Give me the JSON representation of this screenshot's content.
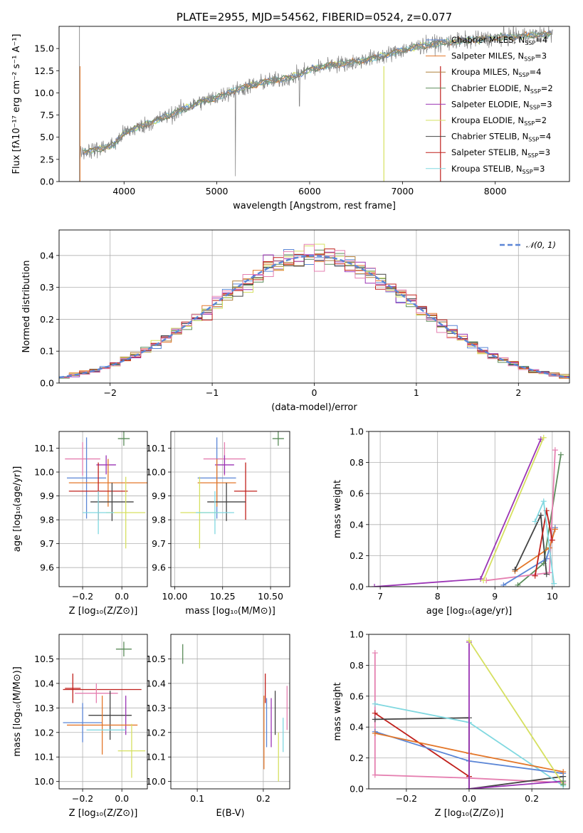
{
  "chart_data": [
    {
      "type": "line",
      "title": "PLATE=2955, MJD=54562, FIBERID=0524, z=0.077",
      "xlabel": "wavelength [Angstrom, rest frame]",
      "ylabel": "Flux [fλ10⁻¹⁷ erg cm⁻² s⁻¹ A⁻¹]",
      "xlim": [
        3300,
        8800
      ],
      "ylim": [
        0,
        17.5
      ],
      "xticks": [
        "4000",
        "5000",
        "6000",
        "7000",
        "8000"
      ],
      "yticks": [
        "0.0",
        "2.5",
        "5.0",
        "7.5",
        "10.0",
        "12.5",
        "15.0"
      ],
      "grid": false,
      "legend_position": "right",
      "legend": [
        {
          "label": "Chabrier MILES, N",
          "sub": "SSP",
          "tail": "=4",
          "color": "#5b86d6"
        },
        {
          "label": "Salpeter MILES, N",
          "sub": "SSP",
          "tail": "=3",
          "color": "#e3772a"
        },
        {
          "label": "Kroupa MILES, N",
          "sub": "SSP",
          "tail": "=4",
          "color": "#b0813c"
        },
        {
          "label": "Chabrier ELODIE, N",
          "sub": "SSP",
          "tail": "=2",
          "color": "#5b8c5a"
        },
        {
          "label": "Salpeter ELODIE, N",
          "sub": "SSP",
          "tail": "=3",
          "color": "#9b35b5"
        },
        {
          "label": "Kroupa ELODIE, N",
          "sub": "SSP",
          "tail": "=2",
          "color": "#d6e060"
        },
        {
          "label": "Chabrier STELIB, N",
          "sub": "SSP",
          "tail": "=4",
          "color": "#444444"
        },
        {
          "label": "Salpeter STELIB, N",
          "sub": "SSP",
          "tail": "=3",
          "color": "#c0201c"
        },
        {
          "label": "Kroupa STELIB, N",
          "sub": "SSP",
          "tail": "=3",
          "color": "#80d8e0"
        }
      ],
      "data_color": "#808080",
      "spectrum_anchors": {
        "x": [
          3500,
          3700,
          3900,
          4000,
          4200,
          4500,
          4800,
          5000,
          5200,
          5500,
          5800,
          6000,
          6200,
          6500,
          6800,
          7000,
          7200,
          7400,
          7600,
          8000,
          8400,
          8600
        ],
        "y": [
          3.3,
          3.6,
          4.2,
          5.5,
          6.3,
          7.5,
          8.9,
          9.5,
          10.3,
          11.2,
          11.7,
          12.6,
          13.1,
          13.5,
          14.2,
          14.8,
          15.3,
          15.6,
          15.8,
          16.2,
          16.5,
          16.6
        ]
      }
    },
    {
      "type": "histogram",
      "xlabel": "(data-model)/error",
      "ylabel": "Normed distribution",
      "xlim": [
        -2.5,
        2.5
      ],
      "ylim": [
        0,
        0.48
      ],
      "xticks": [
        "−2",
        "−1",
        "0",
        "1",
        "2"
      ],
      "yticks": [
        "0.0",
        "0.1",
        "0.2",
        "0.3",
        "0.4"
      ],
      "grid": true,
      "legend_position": "top-right",
      "reference_curve": {
        "name": "𝒩(0, 1)",
        "style": "dashed",
        "color": "#5b86d6"
      },
      "series": [
        {
          "color": "#5b86d6"
        },
        {
          "color": "#e3772a"
        },
        {
          "color": "#b0813c"
        },
        {
          "color": "#5b8c5a"
        },
        {
          "color": "#9b35b5"
        },
        {
          "color": "#d6e060"
        },
        {
          "color": "#444444"
        },
        {
          "color": "#c0201c"
        },
        {
          "color": "#e57fb0"
        }
      ]
    },
    {
      "type": "errorbar",
      "panel": "age-vs-Z",
      "xlabel": "Z [log₁₀(Z/Z⊙)]",
      "ylabel": "age  [log₁₀(age/yr)]",
      "xlim": [
        -0.32,
        0.13
      ],
      "ylim": [
        9.52,
        10.17
      ],
      "xticks": [
        "−0.2",
        "0.0"
      ],
      "yticks": [
        "9.6",
        "9.7",
        "9.8",
        "9.9",
        "10.0",
        "10.1"
      ],
      "grid": true,
      "points": [
        {
          "x": 0.01,
          "y": 10.14,
          "xerr": 0.03,
          "yerr": 0.03,
          "color": "#5b8c5a"
        },
        {
          "x": -0.2,
          "y": 10.055,
          "xerr": 0.09,
          "yerr": 0.07,
          "color": "#e57fb0"
        },
        {
          "x": -0.08,
          "y": 10.03,
          "xerr": 0.05,
          "yerr": 0.04,
          "color": "#9b35b5"
        },
        {
          "x": -0.18,
          "y": 9.975,
          "xerr": 0.1,
          "yerr": 0.17,
          "color": "#5b86d6"
        },
        {
          "x": -0.07,
          "y": 9.955,
          "xerr": 0.2,
          "yerr": 0.1,
          "color": "#e3772a"
        },
        {
          "x": -0.12,
          "y": 9.92,
          "xerr": 0.15,
          "yerr": 0.12,
          "color": "#c0201c"
        },
        {
          "x": -0.05,
          "y": 9.875,
          "xerr": 0.11,
          "yerr": 0.08,
          "color": "#444444"
        },
        {
          "x": 0.02,
          "y": 9.83,
          "xerr": 0.1,
          "yerr": 0.15,
          "color": "#d6e060"
        },
        {
          "x": -0.12,
          "y": 9.83,
          "xerr": 0.08,
          "yerr": 0.09,
          "color": "#80d8e0"
        }
      ]
    },
    {
      "type": "errorbar",
      "panel": "age-vs-mass",
      "xlabel": "mass [log₁₀(M/M⊙)]",
      "ylabel": "",
      "xlim": [
        9.98,
        10.6
      ],
      "ylim": [
        9.52,
        10.17
      ],
      "xticks": [
        "10.00",
        "10.25",
        "10.50"
      ],
      "yticks": [
        "9.6",
        "9.7",
        "9.8",
        "9.9",
        "10.0",
        "10.1"
      ],
      "grid": true,
      "points": [
        {
          "x": 10.54,
          "y": 10.14,
          "xerr": 0.03,
          "yerr": 0.03,
          "color": "#5b8c5a"
        },
        {
          "x": 10.26,
          "y": 10.055,
          "xerr": 0.11,
          "yerr": 0.07,
          "color": "#e57fb0"
        },
        {
          "x": 10.26,
          "y": 10.03,
          "xerr": 0.05,
          "yerr": 0.04,
          "color": "#9b35b5"
        },
        {
          "x": 10.22,
          "y": 9.975,
          "xerr": 0.1,
          "yerr": 0.17,
          "color": "#5b86d6"
        },
        {
          "x": 10.22,
          "y": 9.955,
          "xerr": 0.1,
          "yerr": 0.1,
          "color": "#e3772a"
        },
        {
          "x": 10.37,
          "y": 9.92,
          "xerr": 0.06,
          "yerr": 0.12,
          "color": "#c0201c"
        },
        {
          "x": 10.27,
          "y": 9.875,
          "xerr": 0.1,
          "yerr": 0.08,
          "color": "#444444"
        },
        {
          "x": 10.13,
          "y": 9.83,
          "xerr": 0.1,
          "yerr": 0.15,
          "color": "#d6e060"
        },
        {
          "x": 10.21,
          "y": 9.83,
          "xerr": 0.1,
          "yerr": 0.09,
          "color": "#80d8e0"
        }
      ]
    },
    {
      "type": "line",
      "panel": "weight-vs-age",
      "xlabel": "age  [log₁₀(age/yr)]",
      "ylabel": "mass weight",
      "xlim": [
        6.8,
        10.3
      ],
      "ylim": [
        0,
        1
      ],
      "xticks": [
        "7",
        "8",
        "9",
        "10"
      ],
      "yticks": [
        "0.0",
        "0.2",
        "0.4",
        "0.6",
        "0.8",
        "1.0"
      ],
      "grid": true,
      "series": [
        {
          "color": "#5b8c5a",
          "x": [
            9.4,
            9.85,
            10.15
          ],
          "y": [
            0.01,
            0.15,
            0.85
          ]
        },
        {
          "color": "#e57fb0",
          "x": [
            8.85,
            9.95,
            10.05
          ],
          "y": [
            0.04,
            0.09,
            0.88
          ]
        },
        {
          "color": "#9b35b5",
          "x": [
            6.9,
            8.75,
            9.8
          ],
          "y": [
            0.0,
            0.05,
            0.95
          ]
        },
        {
          "color": "#d6e060",
          "x": [
            8.8,
            9.85
          ],
          "y": [
            0.04,
            0.96
          ]
        },
        {
          "color": "#5b86d6",
          "x": [
            9.15,
            9.9,
            10.05
          ],
          "y": [
            0.01,
            0.18,
            0.38
          ]
        },
        {
          "color": "#e3772a",
          "x": [
            9.35,
            9.95,
            10.05
          ],
          "y": [
            0.1,
            0.25,
            0.37
          ]
        },
        {
          "color": "#444444",
          "x": [
            9.35,
            9.8,
            9.9
          ],
          "y": [
            0.11,
            0.46,
            0.08
          ]
        },
        {
          "color": "#c0201c",
          "x": [
            9.7,
            9.9,
            10.0
          ],
          "y": [
            0.07,
            0.49,
            0.3
          ]
        },
        {
          "color": "#80d8e0",
          "x": [
            9.7,
            9.85,
            10.03
          ],
          "y": [
            0.42,
            0.55,
            0.02
          ]
        }
      ]
    },
    {
      "type": "errorbar",
      "panel": "mass-vs-Z",
      "xlabel": "Z [log₁₀(Z/Z⊙)]",
      "ylabel": "mass [log₁₀(M/M⊙)]",
      "xlim": [
        -0.32,
        0.13
      ],
      "ylim": [
        9.97,
        10.6
      ],
      "xticks": [
        "−0.2",
        "0.0"
      ],
      "yticks": [
        "10.0",
        "10.1",
        "10.2",
        "10.3",
        "10.4",
        "10.5"
      ],
      "grid": true,
      "points": [
        {
          "x": 0.01,
          "y": 10.54,
          "xerr": 0.04,
          "yerr": 0.03,
          "color": "#5b8c5a"
        },
        {
          "x": -0.25,
          "y": 10.38,
          "xerr": 0.04,
          "yerr": 0.06,
          "color": "#c0201c"
        },
        {
          "x": -0.1,
          "y": 10.375,
          "xerr": 0.2,
          "yerr": 0.0,
          "color": "#c0201c"
        },
        {
          "x": -0.13,
          "y": 10.36,
          "xerr": 0.11,
          "yerr": 0.04,
          "color": "#e57fb0"
        },
        {
          "x": -0.06,
          "y": 10.27,
          "xerr": 0.11,
          "yerr": 0.1,
          "color": "#444444"
        },
        {
          "x": 0.02,
          "y": 10.27,
          "xerr": 0.0,
          "yerr": 0.08,
          "color": "#9b35b5"
        },
        {
          "x": -0.2,
          "y": 10.24,
          "xerr": 0.1,
          "yerr": 0.08,
          "color": "#5b86d6"
        },
        {
          "x": -0.1,
          "y": 10.23,
          "xerr": 0.18,
          "yerr": 0.12,
          "color": "#e3772a"
        },
        {
          "x": -0.08,
          "y": 10.21,
          "xerr": 0.1,
          "yerr": 0.0,
          "color": "#80d8e0"
        },
        {
          "x": 0.05,
          "y": 10.125,
          "xerr": 0.07,
          "yerr": 0.11,
          "color": "#d6e060"
        }
      ]
    },
    {
      "type": "errorbar",
      "panel": "mass-vs-EBV",
      "xlabel": "E(B-V)",
      "ylabel": "",
      "xlim": [
        0.06,
        0.24
      ],
      "ylim": [
        9.97,
        10.6
      ],
      "xticks": [
        "0.1",
        "0.2"
      ],
      "yticks": [
        "10.0",
        "10.1",
        "10.2",
        "10.3",
        "10.4",
        "10.5"
      ],
      "grid": true,
      "points": [
        {
          "x": 0.078,
          "y": 10.52,
          "yerr": 0.04,
          "color": "#5b8c5a"
        },
        {
          "x": 0.203,
          "y": 10.38,
          "yerr": 0.06,
          "color": "#c0201c"
        },
        {
          "x": 0.201,
          "y": 10.2,
          "yerr": 0.15,
          "color": "#e3772a"
        },
        {
          "x": 0.205,
          "y": 10.24,
          "yerr": 0.1,
          "color": "#5b86d6"
        },
        {
          "x": 0.212,
          "y": 10.24,
          "yerr": 0.1,
          "color": "#9b35b5"
        },
        {
          "x": 0.218,
          "y": 10.28,
          "yerr": 0.09,
          "color": "#444444"
        },
        {
          "x": 0.223,
          "y": 10.1,
          "yerr": 0.1,
          "color": "#d6e060"
        },
        {
          "x": 0.23,
          "y": 10.19,
          "yerr": 0.07,
          "color": "#80d8e0"
        },
        {
          "x": 0.236,
          "y": 10.3,
          "yerr": 0.09,
          "color": "#e57fb0"
        }
      ]
    },
    {
      "type": "line",
      "panel": "weight-vs-Z",
      "xlabel": "Z [log₁₀(Z/Z⊙)]",
      "ylabel": "mass weight",
      "xlim": [
        -0.32,
        0.32
      ],
      "ylim": [
        0,
        1
      ],
      "xticks": [
        "−0.2",
        "0.0",
        "0.2"
      ],
      "yticks": [
        "0.0",
        "0.2",
        "0.4",
        "0.6",
        "0.8",
        "1.0"
      ],
      "grid": true,
      "series": [
        {
          "color": "#e57fb0",
          "x": [
            -0.3,
            -0.3,
            0.0,
            0.3
          ],
          "y": [
            0.88,
            0.09,
            0.07,
            0.04
          ]
        },
        {
          "color": "#c0201c",
          "x": [
            -0.3,
            0.0
          ],
          "y": [
            0.49,
            0.08
          ]
        },
        {
          "color": "#444444",
          "x": [
            -0.3,
            0.0,
            0.0,
            0.3
          ],
          "y": [
            0.45,
            0.46,
            0.0,
            0.08
          ]
        },
        {
          "color": "#80d8e0",
          "x": [
            -0.3,
            0.0,
            0.3
          ],
          "y": [
            0.55,
            0.43,
            0.02
          ]
        },
        {
          "color": "#5b86d6",
          "x": [
            -0.3,
            0.0,
            0.3
          ],
          "y": [
            0.37,
            0.18,
            0.1
          ]
        },
        {
          "color": "#e3772a",
          "x": [
            -0.3,
            0.0,
            0.3
          ],
          "y": [
            0.36,
            0.23,
            0.11
          ]
        },
        {
          "color": "#9b35b5",
          "x": [
            0.0,
            0.0,
            0.3
          ],
          "y": [
            0.95,
            0.0,
            0.05
          ]
        },
        {
          "color": "#d6e060",
          "x": [
            0.0,
            0.3
          ],
          "y": [
            0.96,
            0.03
          ]
        },
        {
          "color": "#5b8c5a",
          "x": [
            0.3,
            0.3
          ],
          "y": [
            0.05,
            0.03
          ]
        }
      ]
    }
  ]
}
